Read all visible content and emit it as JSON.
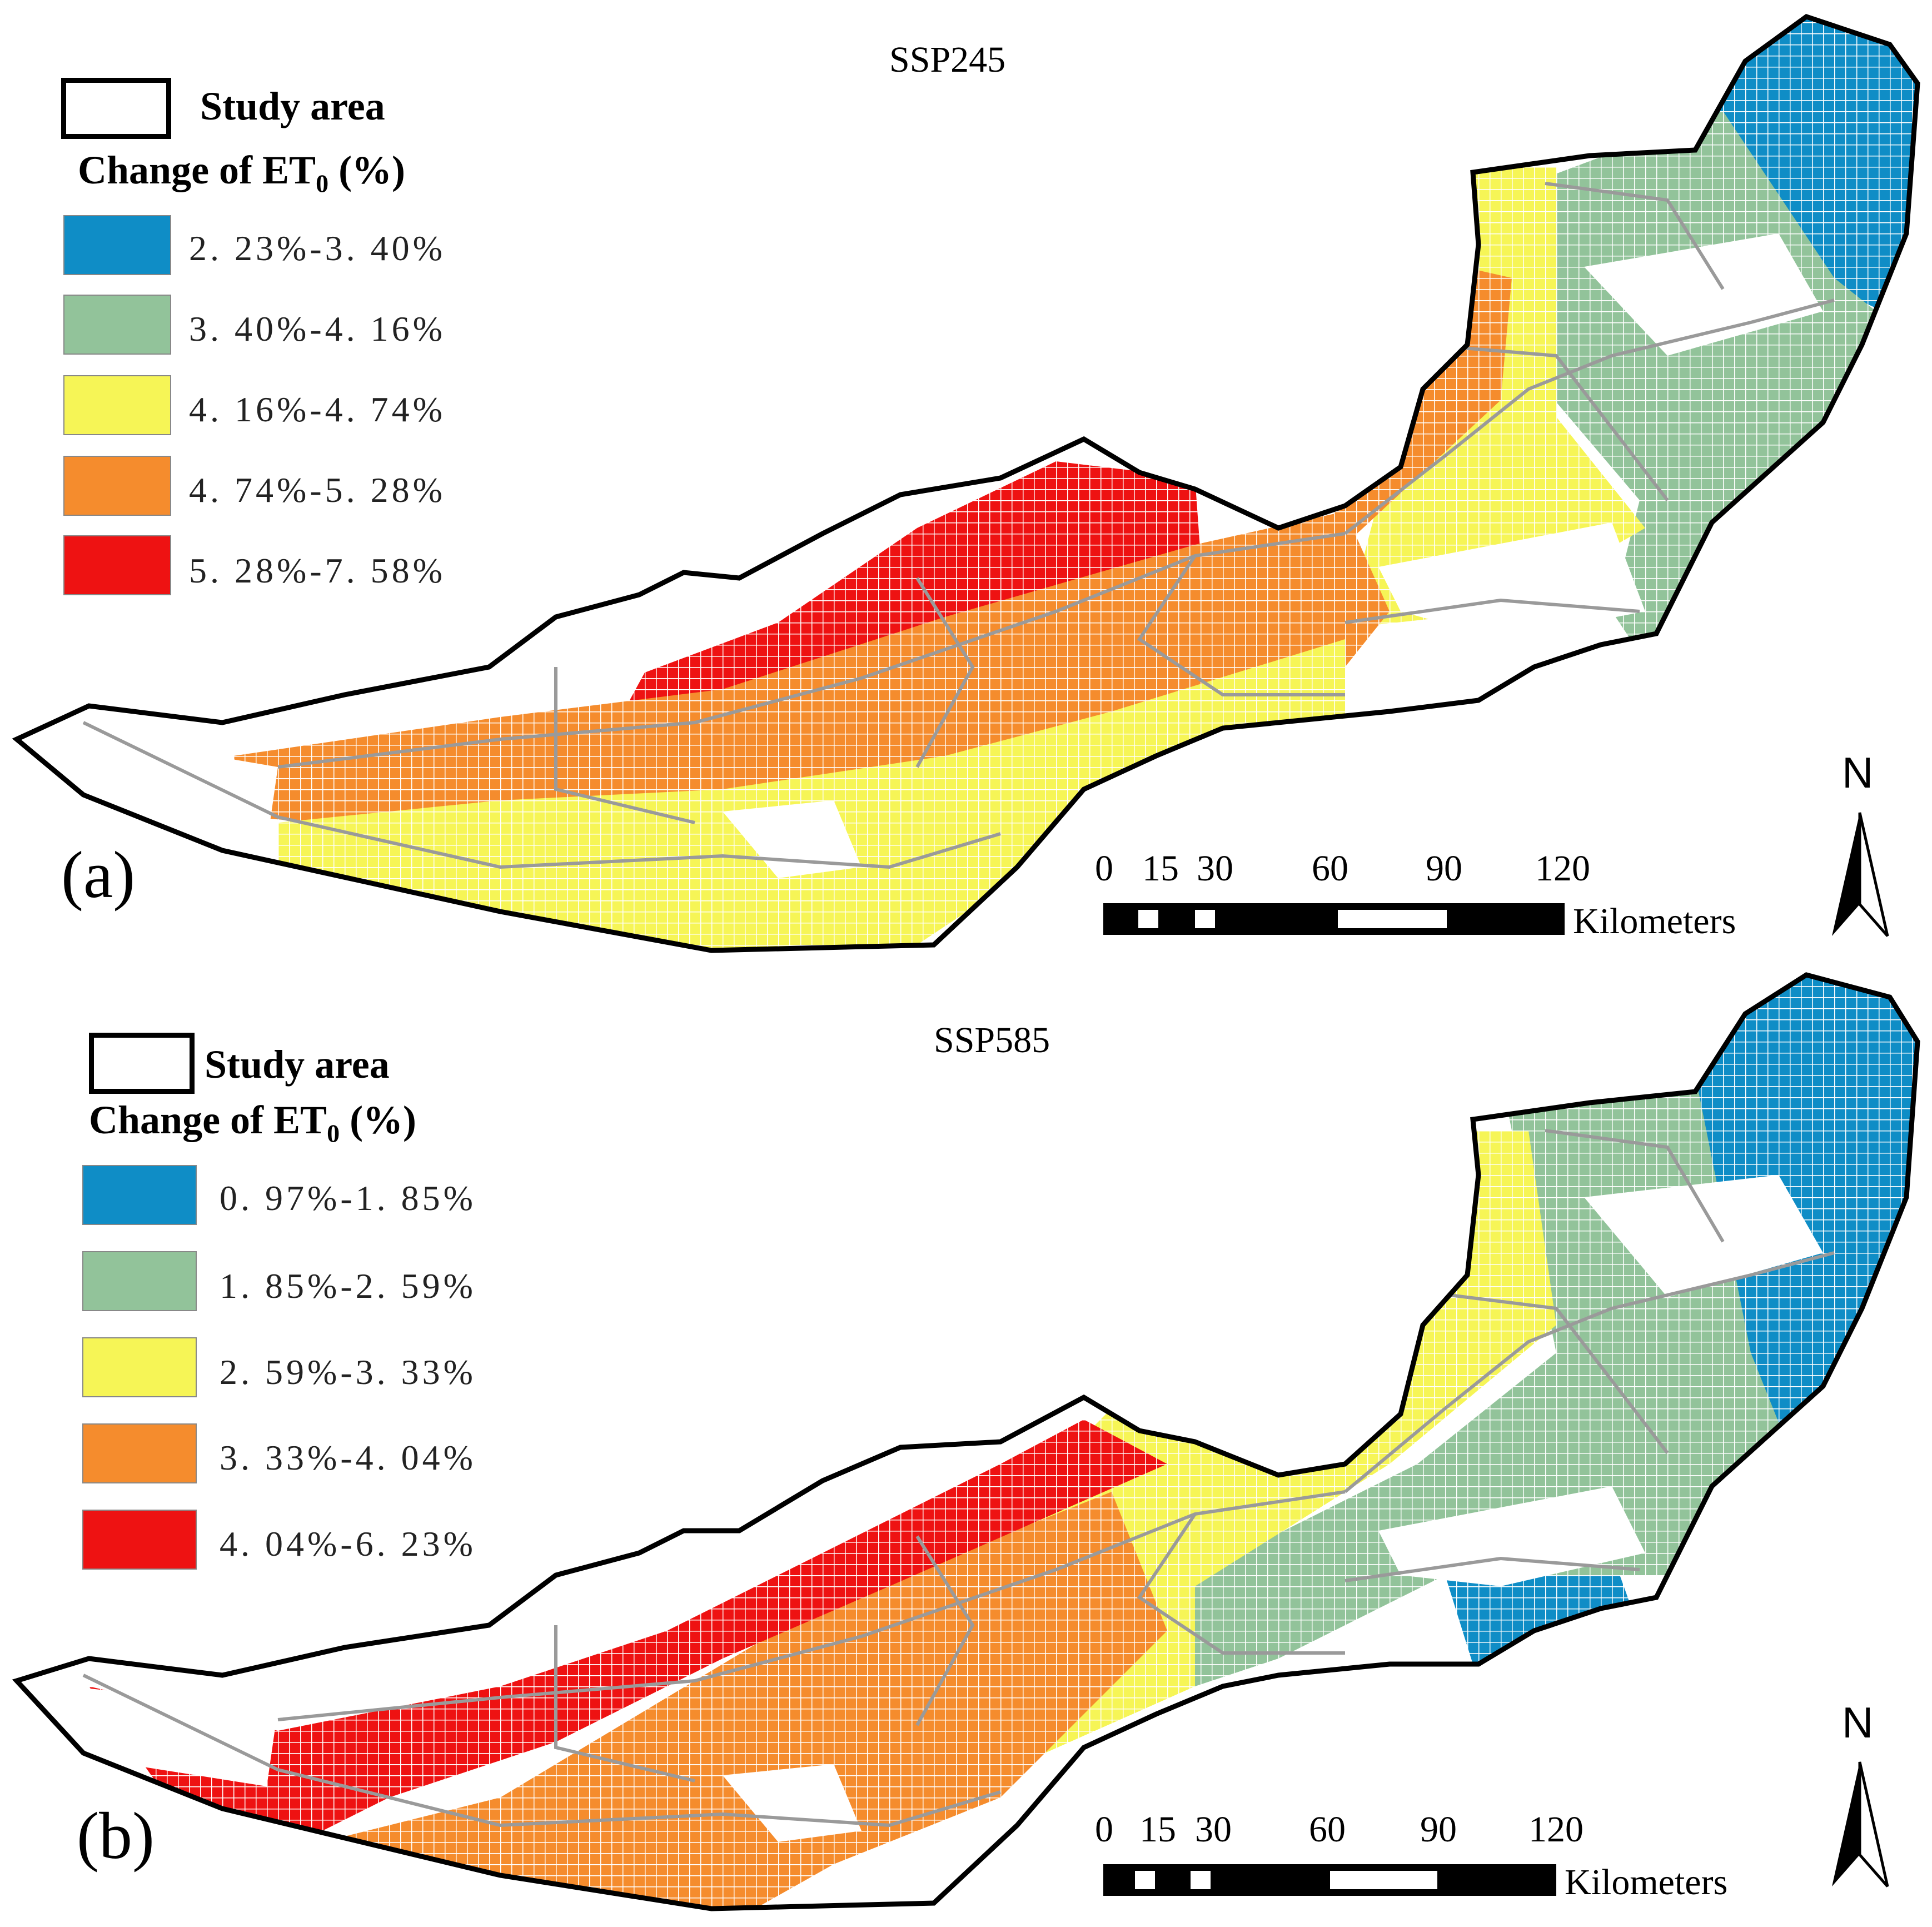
{
  "panels": [
    {
      "id": "a",
      "title": "SSP245",
      "panel_label": "(a)",
      "legend": {
        "boundary_label": "Study area",
        "heading_main": "Change of ET",
        "heading_sub": "0",
        "heading_unit": " (%)",
        "classes": [
          {
            "label": "2. 23%-3. 40%",
            "color": "#0f8dc6"
          },
          {
            "label": "3. 40%-4. 16%",
            "color": "#92c39a"
          },
          {
            "label": "4. 16%-4. 74%",
            "color": "#f6f556"
          },
          {
            "label": "4. 74%-5. 28%",
            "color": "#f58c2d"
          },
          {
            "label": "5. 28%-7. 58%",
            "color": "#ee1212"
          }
        ]
      },
      "scale_bar": {
        "ticks": [
          "0",
          "15",
          "30",
          "60",
          "90",
          "120"
        ],
        "unit": "Kilometers"
      },
      "north": "N"
    },
    {
      "id": "b",
      "title": "SSP585",
      "panel_label": "(b)",
      "legend": {
        "boundary_label": "Study area",
        "heading_main": "Change of ET",
        "heading_sub": "0",
        "heading_unit": " (%)",
        "classes": [
          {
            "label": "0. 97%-1. 85%",
            "color": "#0f8dc6"
          },
          {
            "label": "1. 85%-2. 59%",
            "color": "#92c39a"
          },
          {
            "label": "2. 59%-3. 33%",
            "color": "#f6f556"
          },
          {
            "label": "3. 33%-4. 04%",
            "color": "#f58c2d"
          },
          {
            "label": "4. 04%-6. 23%",
            "color": "#ee1212"
          }
        ]
      },
      "scale_bar": {
        "ticks": [
          "0",
          "15",
          "30",
          "60",
          "90",
          "120"
        ],
        "unit": "Kilometers"
      },
      "north": "N"
    }
  ]
}
